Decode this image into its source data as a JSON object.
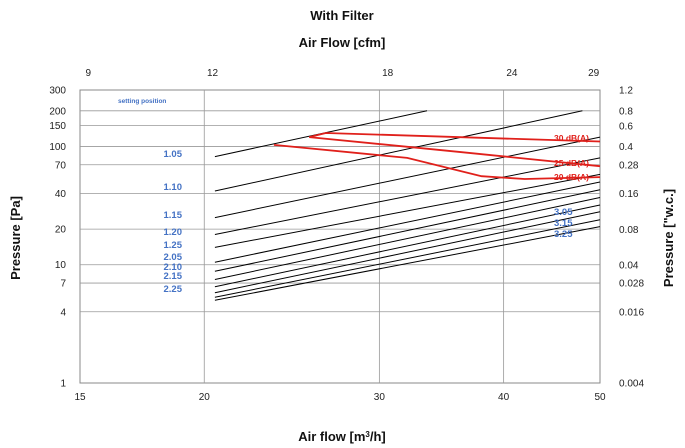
{
  "chart_data": {
    "type": "line",
    "title": "With Filter",
    "subtitle": "Air Flow [cfm]",
    "xlabel": "Air flow [m³/h]",
    "ylabel": "Pressure [Pa]",
    "ylabel_right": "Pressure [\"w.c.]",
    "x_scale": "log",
    "y_scale": "log",
    "xlim": [
      15,
      50
    ],
    "ylim": [
      1,
      300
    ],
    "grid": true,
    "x_ticks": [
      "15",
      "20",
      "30",
      "40",
      "50"
    ],
    "x_ticks_top": [
      "9",
      "12",
      "18",
      "24",
      "29"
    ],
    "y_ticks": [
      "1",
      "4",
      "7",
      "10",
      "20",
      "40",
      "70",
      "100",
      "150",
      "200",
      "300"
    ],
    "y_ticks_right": [
      "0.004",
      "0.016",
      "0.028",
      "0.04",
      "0.08",
      "0.16",
      "0.28",
      "0.4",
      "0.6",
      "0.8",
      "1.2"
    ],
    "annotation": "setting position",
    "series": [
      {
        "name": "1.05",
        "x": [
          20.5,
          33.5
        ],
        "y": [
          82,
          200
        ]
      },
      {
        "name": "1.10",
        "x": [
          20.5,
          48
        ],
        "y": [
          42,
          200
        ]
      },
      {
        "name": "1.15",
        "x": [
          20.5,
          50
        ],
        "y": [
          25,
          120
        ]
      },
      {
        "name": "1.20",
        "x": [
          20.5,
          50
        ],
        "y": [
          18,
          80
        ]
      },
      {
        "name": "1.25",
        "x": [
          20.5,
          50
        ],
        "y": [
          14,
          58
        ]
      },
      {
        "name": "2.05",
        "x": [
          20.5,
          50
        ],
        "y": [
          10.5,
          50
        ]
      },
      {
        "name": "2.10",
        "x": [
          20.5,
          50
        ],
        "y": [
          8.8,
          43
        ]
      },
      {
        "name": "2.15",
        "x": [
          20.5,
          50
        ],
        "y": [
          7.5,
          37
        ]
      },
      {
        "name": "2.25",
        "x": [
          20.5,
          50
        ],
        "y": [
          6.5,
          32
        ]
      },
      {
        "name": "3.05",
        "x": [
          20.5,
          50
        ],
        "y": [
          5.8,
          28
        ]
      },
      {
        "name": "3.15",
        "x": [
          20.5,
          50
        ],
        "y": [
          5.3,
          24
        ]
      },
      {
        "name": "3.25",
        "x": [
          20.5,
          50
        ],
        "y": [
          5.0,
          21
        ]
      }
    ],
    "noise_curves": [
      {
        "name": "30 dB(A)",
        "x": [
          25.5,
          26.5,
          50
        ],
        "y": [
          120,
          130,
          110
        ]
      },
      {
        "name": "25 dB(A)",
        "x": [
          25.5,
          36,
          50
        ],
        "y": [
          120,
          90,
          68
        ]
      },
      {
        "name": "20 dB(A)",
        "x": [
          23.5,
          32,
          38,
          42,
          50
        ],
        "y": [
          103,
          80,
          56,
          53,
          55
        ]
      }
    ],
    "colors": {
      "series": "#000000",
      "noise": "#e0201b",
      "labels": "#4472c4"
    }
  }
}
